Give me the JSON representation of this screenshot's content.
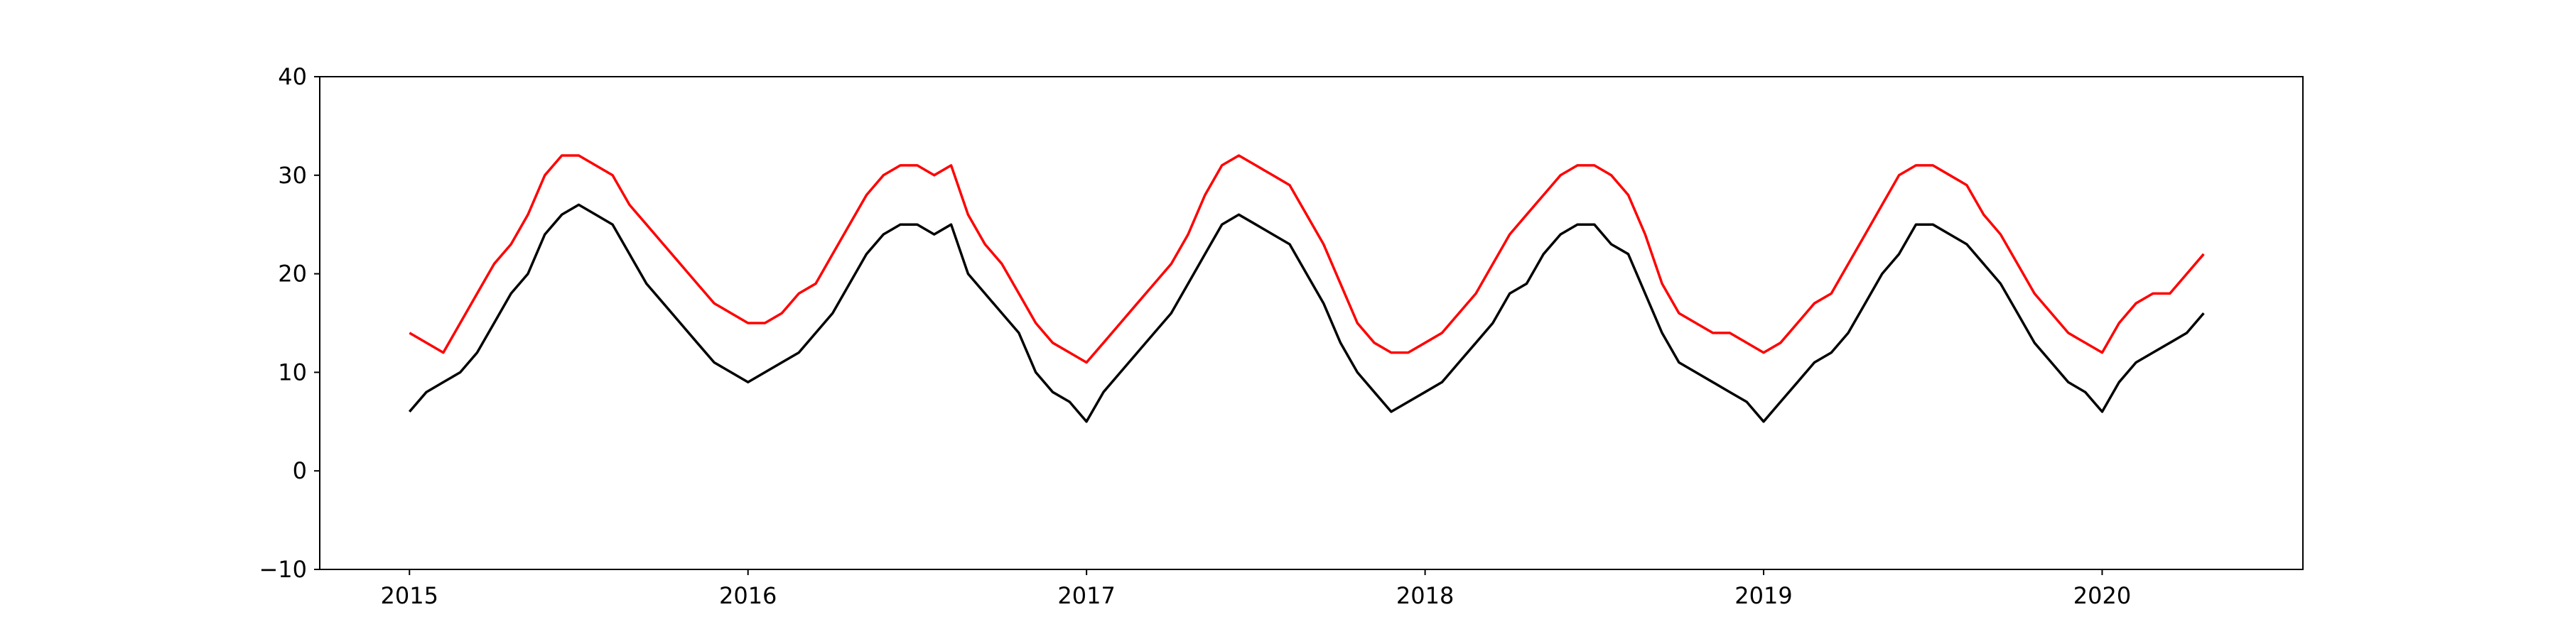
{
  "chart_data": {
    "type": "line",
    "x": [
      2015,
      2015.05,
      2015.1,
      2015.15,
      2015.2,
      2015.25,
      2015.3,
      2015.35,
      2015.4,
      2015.45,
      2015.5,
      2015.55,
      2015.6,
      2015.65,
      2015.7,
      2015.75,
      2015.8,
      2015.85,
      2015.9,
      2015.95,
      2016,
      2016.05,
      2016.1,
      2016.15,
      2016.2,
      2016.25,
      2016.3,
      2016.35,
      2016.4,
      2016.45,
      2016.5,
      2016.55,
      2016.6,
      2016.65,
      2016.7,
      2016.75,
      2016.8,
      2016.85,
      2016.9,
      2016.95,
      2017,
      2017.05,
      2017.1,
      2017.15,
      2017.2,
      2017.25,
      2017.3,
      2017.35,
      2017.4,
      2017.45,
      2017.5,
      2017.55,
      2017.6,
      2017.65,
      2017.7,
      2017.75,
      2017.8,
      2017.85,
      2017.9,
      2017.95,
      2018,
      2018.05,
      2018.1,
      2018.15,
      2018.2,
      2018.25,
      2018.3,
      2018.35,
      2018.4,
      2018.45,
      2018.5,
      2018.55,
      2018.6,
      2018.65,
      2018.7,
      2018.75,
      2018.8,
      2018.85,
      2018.9,
      2018.95,
      2019,
      2019.05,
      2019.1,
      2019.15,
      2019.2,
      2019.25,
      2019.3,
      2019.35,
      2019.4,
      2019.45,
      2019.5,
      2019.55,
      2019.6,
      2019.65,
      2019.7,
      2019.75,
      2019.8,
      2019.85,
      2019.9,
      2019.95,
      2020,
      2020.05,
      2020.1,
      2020.15,
      2020.2,
      2020.25,
      2020.3
    ],
    "series": [
      {
        "color": "#000000",
        "values": [
          6,
          8,
          9,
          10,
          12,
          15,
          18,
          20,
          24,
          26,
          27,
          26,
          25,
          22,
          19,
          17,
          15,
          13,
          11,
          10,
          9,
          10,
          11,
          12,
          14,
          16,
          19,
          22,
          24,
          25,
          25,
          24,
          25,
          20,
          18,
          16,
          14,
          10,
          8,
          7,
          5,
          8,
          10,
          12,
          14,
          16,
          19,
          22,
          25,
          26,
          25,
          24,
          23,
          20,
          17,
          13,
          10,
          8,
          6,
          7,
          8,
          9,
          11,
          13,
          15,
          18,
          19,
          22,
          24,
          25,
          25,
          23,
          22,
          18,
          14,
          11,
          10,
          9,
          8,
          7,
          5,
          7,
          9,
          11,
          12,
          14,
          17,
          20,
          22,
          25,
          25,
          24,
          23,
          21,
          19,
          16,
          13,
          11,
          9,
          8,
          6,
          9,
          11,
          12,
          13,
          14,
          16
        ]
      },
      {
        "color": "#ff0000",
        "values": [
          14,
          13,
          12,
          15,
          18,
          21,
          23,
          26,
          30,
          32,
          32,
          31,
          30,
          27,
          25,
          23,
          21,
          19,
          17,
          16,
          15,
          15,
          16,
          18,
          19,
          22,
          25,
          28,
          30,
          31,
          31,
          30,
          31,
          26,
          23,
          21,
          18,
          15,
          13,
          12,
          11,
          13,
          15,
          17,
          19,
          21,
          24,
          28,
          31,
          32,
          31,
          30,
          29,
          26,
          23,
          19,
          15,
          13,
          12,
          12,
          13,
          14,
          16,
          18,
          21,
          24,
          26,
          28,
          30,
          31,
          31,
          30,
          28,
          24,
          19,
          16,
          15,
          14,
          14,
          13,
          12,
          13,
          15,
          17,
          18,
          21,
          24,
          27,
          30,
          31,
          31,
          30,
          29,
          26,
          24,
          21,
          18,
          16,
          14,
          13,
          12,
          15,
          17,
          18,
          18,
          20,
          22
        ]
      }
    ],
    "xlim": [
      2014.735,
      2020.593
    ],
    "xticks": [
      2015,
      2016,
      2017,
      2018,
      2019,
      2020
    ],
    "ylim": [
      -10,
      40
    ],
    "yticks": [
      {
        "value": -10,
        "label": "−10"
      },
      0,
      10,
      20,
      30,
      40
    ]
  }
}
